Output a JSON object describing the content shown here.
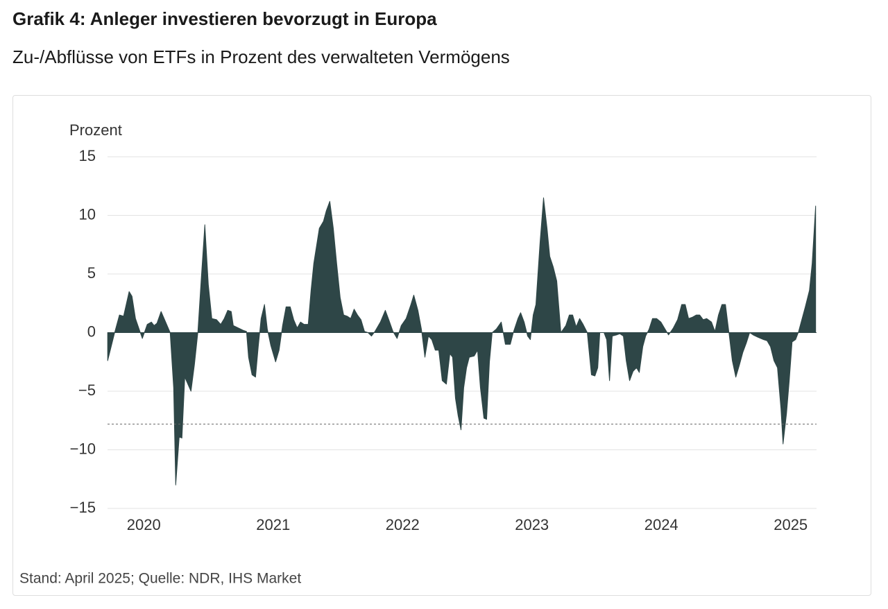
{
  "chart_data": {
    "type": "area",
    "title": "Grafik 4: Anleger investieren bevorzugt in Europa",
    "subtitle": "Zu-/Abflüsse von ETFs in Prozent des verwalteten Vermögens",
    "y_axis_label": "Prozent",
    "footnote": "Stand: April 2025; Quelle: NDR, IHS Market",
    "color": "#2e4647",
    "grid": true,
    "reference_line": -7.8,
    "xlim": [
      2019.72,
      2025.2
    ],
    "xticks": [
      2020,
      2021,
      2022,
      2023,
      2024,
      2025
    ],
    "ylim": [
      -15,
      15
    ],
    "yticks": [
      {
        "value": -15,
        "label": "−15"
      },
      {
        "value": -10,
        "label": "−10"
      },
      {
        "value": -5,
        "label": "−5"
      },
      0,
      5,
      10,
      15
    ],
    "x": [
      2019.721,
      2019.775,
      2019.812,
      2019.844,
      2019.887,
      2019.909,
      2019.936,
      2019.989,
      2020.027,
      2020.059,
      2020.08,
      2020.102,
      2020.134,
      2020.177,
      2020.204,
      2020.231,
      2020.247,
      2020.274,
      2020.295,
      2020.317,
      2020.365,
      2020.392,
      2020.418,
      2020.445,
      2020.472,
      2020.499,
      2020.526,
      2020.563,
      2020.595,
      2020.622,
      2020.649,
      2020.676,
      2020.692,
      2020.767,
      2020.794,
      2020.81,
      2020.837,
      2020.864,
      2020.885,
      2020.907,
      2020.933,
      2020.955,
      2020.982,
      2021.019,
      2021.046,
      2021.073,
      2021.1,
      2021.132,
      2021.159,
      2021.186,
      2021.212,
      2021.239,
      2021.271,
      2021.293,
      2021.314,
      2021.357,
      2021.389,
      2021.411,
      2021.438,
      2021.465,
      2021.491,
      2021.518,
      2021.545,
      2021.572,
      2021.599,
      2021.626,
      2021.652,
      2021.679,
      2021.706,
      2021.733,
      2021.76,
      2021.787,
      2021.829,
      2021.867,
      2021.894,
      2021.926,
      2021.958,
      2021.99,
      2022.028,
      2022.065,
      2022.087,
      2022.119,
      2022.146,
      2022.173,
      2022.2,
      2022.226,
      2022.253,
      2022.28,
      2022.307,
      2022.339,
      2022.366,
      2022.387,
      2022.409,
      2022.43,
      2022.452,
      2022.473,
      2022.495,
      2022.516,
      2022.554,
      2022.58,
      2022.602,
      2022.629,
      2022.65,
      2022.672,
      2022.693,
      2022.725,
      2022.763,
      2022.795,
      2022.833,
      2022.859,
      2022.892,
      2022.913,
      2022.94,
      2022.967,
      2022.988,
      2023.01,
      2023.031,
      2023.063,
      2023.09,
      2023.117,
      2023.138,
      2023.165,
      2023.192,
      2023.224,
      2023.262,
      2023.289,
      2023.315,
      2023.342,
      2023.369,
      2023.396,
      2023.428,
      2023.46,
      2023.487,
      2023.509,
      2023.525,
      2023.557,
      2023.578,
      2023.6,
      2023.621,
      2023.654,
      2023.68,
      2023.707,
      2023.729,
      2023.755,
      2023.782,
      2023.809,
      2023.83,
      2023.857,
      2023.879,
      2023.906,
      2023.932,
      2023.964,
      2023.997,
      2024.029,
      2024.056,
      2024.093,
      2024.126,
      2024.158,
      2024.185,
      2024.211,
      2024.238,
      2024.27,
      2024.297,
      2024.324,
      2024.351,
      2024.388,
      2024.415,
      2024.442,
      2024.469,
      2024.496,
      2024.523,
      2024.549,
      2024.576,
      2024.603,
      2024.63,
      2024.657,
      2024.683,
      2024.71,
      2024.748,
      2024.791,
      2024.818,
      2024.844,
      2024.871,
      2024.898,
      2024.925,
      2024.941,
      2024.968,
      2024.989,
      2025.011,
      2025.038,
      2025.059,
      2025.113,
      2025.145,
      2025.166,
      2025.193
    ],
    "values": [
      -2.4,
      0,
      1.5,
      1.4,
      3.5,
      3.1,
      1.2,
      -0.5,
      0.7,
      0.9,
      0.6,
      0.8,
      1.8,
      0.7,
      0,
      -4.7,
      -13.0,
      -8.9,
      -9.0,
      -3.8,
      -5.0,
      -2.7,
      0,
      4.7,
      9.2,
      4.1,
      1.2,
      1.1,
      0.7,
      1.2,
      1.9,
      1.8,
      0.6,
      0.2,
      0.1,
      -2.1,
      -3.6,
      -3.8,
      -1.2,
      1.2,
      2.4,
      0.3,
      -1.1,
      -2.5,
      -1.5,
      0.6,
      2.2,
      2.2,
      1.1,
      0.4,
      0.9,
      0.7,
      0.7,
      3.6,
      5.9,
      8.9,
      9.5,
      10.4,
      11.2,
      8.9,
      5.9,
      3.0,
      1.5,
      1.4,
      1.2,
      2.0,
      1.5,
      1.1,
      0.1,
      0,
      -0.3,
      0.1,
      0.9,
      1.9,
      1.1,
      0.1,
      -0.5,
      0.6,
      1.2,
      2.4,
      3.2,
      1.9,
      0.3,
      -2.1,
      -0.3,
      -0.6,
      -1.5,
      -1.5,
      -4.1,
      -4.4,
      -1.8,
      -2.1,
      -5.6,
      -7.1,
      -8.3,
      -4.7,
      -3.0,
      -2.1,
      -2.0,
      -1.5,
      -4.7,
      -7.3,
      -7.4,
      -2.5,
      0,
      0.3,
      0.9,
      -1.0,
      -1.0,
      0.1,
      1.2,
      1.7,
      0.9,
      -0.3,
      -0.6,
      1.5,
      2.4,
      7.7,
      11.5,
      8.9,
      6.5,
      5.6,
      4.4,
      0,
      0.6,
      1.5,
      1.5,
      0.5,
      1.2,
      0.7,
      0,
      -3.6,
      -3.7,
      -3.0,
      0,
      0,
      -0.6,
      -4.1,
      -0.3,
      -0.2,
      -0.1,
      -0.3,
      -2.4,
      -4.1,
      -3.3,
      -3.0,
      -3.4,
      -1.2,
      -0.3,
      0.3,
      1.2,
      1.2,
      0.9,
      0.3,
      -0.2,
      0.4,
      1.1,
      2.4,
      2.4,
      1.2,
      1.3,
      1.5,
      1.5,
      1.1,
      1.2,
      0.9,
      0.1,
      1.5,
      2.4,
      2.4,
      0,
      -2.4,
      -3.8,
      -2.8,
      -1.7,
      -0.9,
      0,
      -0.2,
      -0.4,
      -0.6,
      -0.7,
      -1.2,
      -2.4,
      -3.0,
      -6.5,
      -9.5,
      -6.9,
      -4.1,
      -0.8,
      -0.6,
      0,
      2.2,
      3.6,
      5.9,
      10.8
    ]
  }
}
